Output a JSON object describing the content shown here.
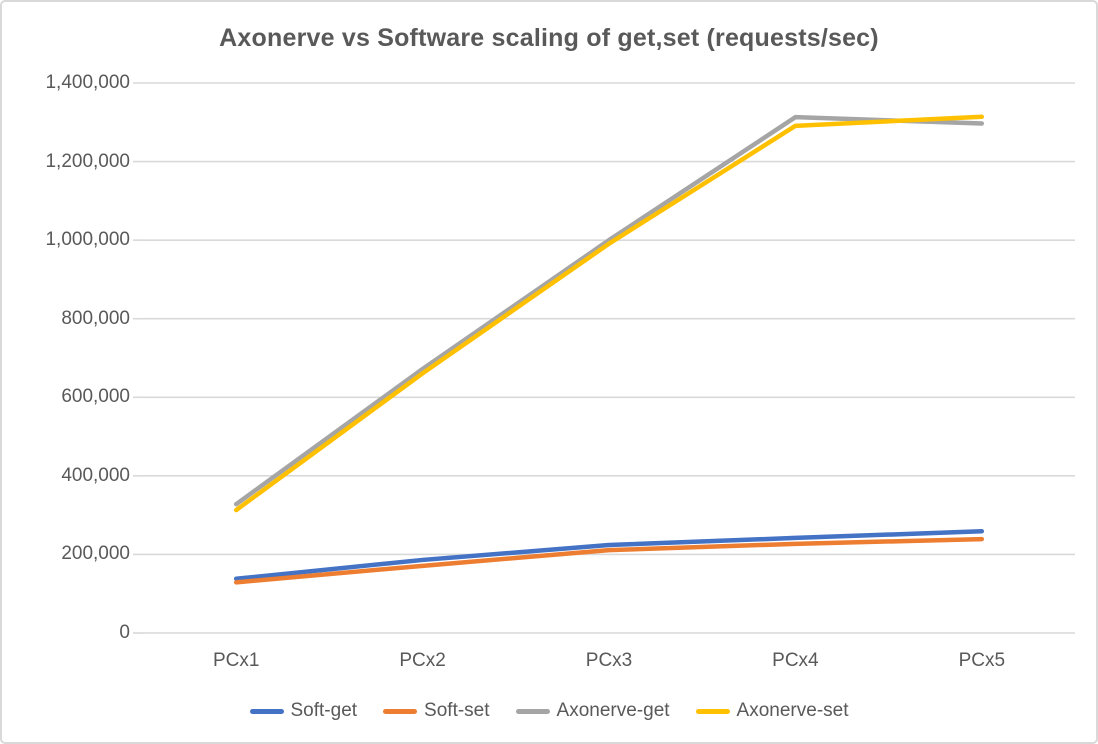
{
  "chart_data": {
    "type": "line",
    "title": "Axonerve vs Software scaling of get,set (requests/sec)",
    "categories": [
      "PCx1",
      "PCx2",
      "PCx3",
      "PCx4",
      "PCx5"
    ],
    "series": [
      {
        "name": "Soft-get",
        "color": "#4472C4",
        "values": [
          138000,
          186000,
          224000,
          242000,
          259000
        ]
      },
      {
        "name": "Soft-set",
        "color": "#ED7D31",
        "values": [
          129000,
          171000,
          211000,
          227000,
          239000
        ]
      },
      {
        "name": "Axonerve-get",
        "color": "#A5A5A5",
        "values": [
          328000,
          672000,
          1000000,
          1313000,
          1297000
        ]
      },
      {
        "name": "Axonerve-set",
        "color": "#FFC000",
        "values": [
          313000,
          661000,
          991000,
          1291000,
          1314000
        ]
      }
    ],
    "xlabel": "",
    "ylabel": "",
    "ylim": [
      0,
      1400000
    ],
    "ytick_step": 200000,
    "ytick_labels": [
      "0",
      "200,000",
      "400,000",
      "600,000",
      "800,000",
      "1,000,000",
      "1,200,000",
      "1,400,000"
    ],
    "grid": "horizontal",
    "legend_position": "bottom",
    "colors": {
      "text": "#595959",
      "gridline": "#D9D9D9",
      "border": "#D9D9D9",
      "background": "#FFFFFF"
    }
  }
}
